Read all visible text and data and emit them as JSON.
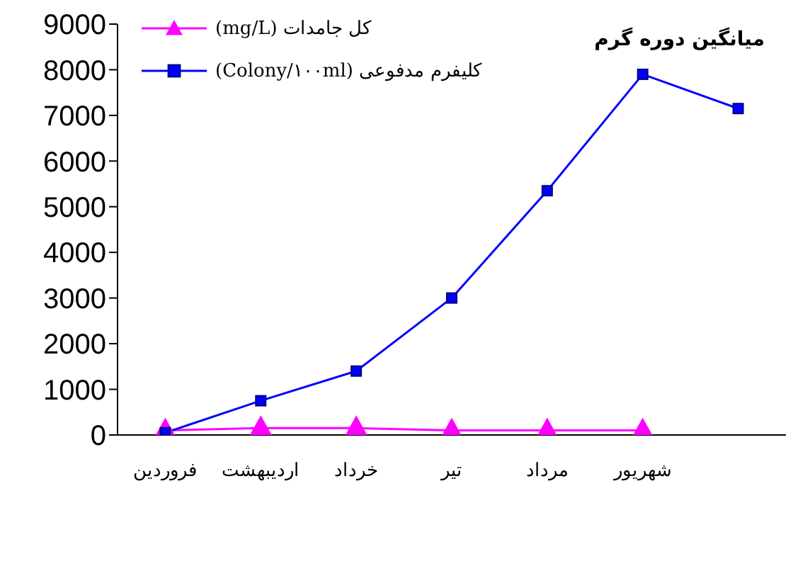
{
  "chart_data": {
    "type": "line",
    "title": "میانگین دوره گرم",
    "categories": [
      "فروردین",
      "اردیبهشت",
      "خرداد",
      "تیر",
      "مرداد",
      "شهریور",
      null
    ],
    "series": [
      {
        "name": "کل جامدات (mg/L)",
        "color": "#ff00ff",
        "marker": "triangle",
        "values": [
          100,
          150,
          150,
          100,
          100,
          100,
          null
        ]
      },
      {
        "name": "کلیفرم مدفوعی (Colony/۱۰۰ml)",
        "color": "#0000ff",
        "marker": "square",
        "values": [
          50,
          750,
          1400,
          3000,
          5350,
          7900,
          7150
        ]
      }
    ],
    "ylim": [
      0,
      9000
    ],
    "yticks": [
      0,
      1000,
      2000,
      3000,
      4000,
      5000,
      6000,
      7000,
      8000,
      9000
    ],
    "legend": "top left"
  }
}
